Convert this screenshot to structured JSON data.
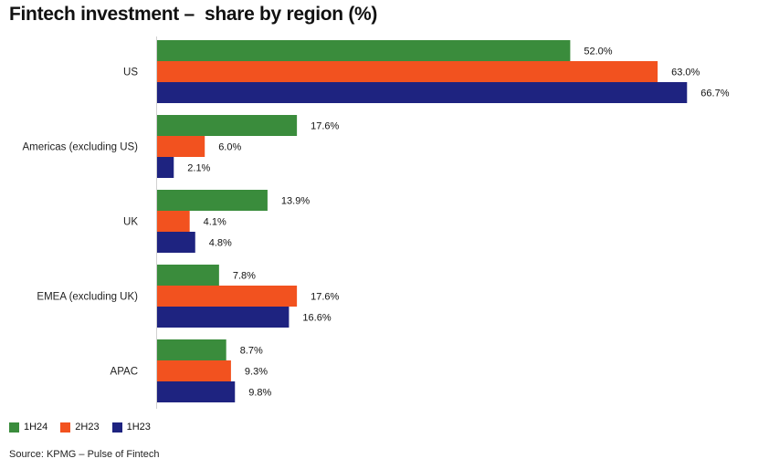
{
  "chart_data": {
    "type": "bar",
    "orientation": "horizontal",
    "title": "Fintech investment –  share by region (%)",
    "categories": [
      "US",
      "Americas (excluding US)",
      "UK",
      "EMEA (excluding UK)",
      "APAC"
    ],
    "series": [
      {
        "name": "1H24",
        "color": "#3a8c3c",
        "values": [
          52.0,
          17.6,
          13.9,
          7.8,
          8.7
        ]
      },
      {
        "name": "2H23",
        "color": "#f2521f",
        "values": [
          63.0,
          6.0,
          4.1,
          17.6,
          9.3
        ]
      },
      {
        "name": "1H23",
        "color": "#1e2380",
        "values": [
          66.7,
          2.1,
          4.8,
          16.6,
          9.8
        ]
      }
    ],
    "value_labels_suffix": "%",
    "xlim": [
      0,
      100
    ],
    "grid": false,
    "legend_position": "bottom-left",
    "source": "Source: KPMG – Pulse of Fintech"
  }
}
